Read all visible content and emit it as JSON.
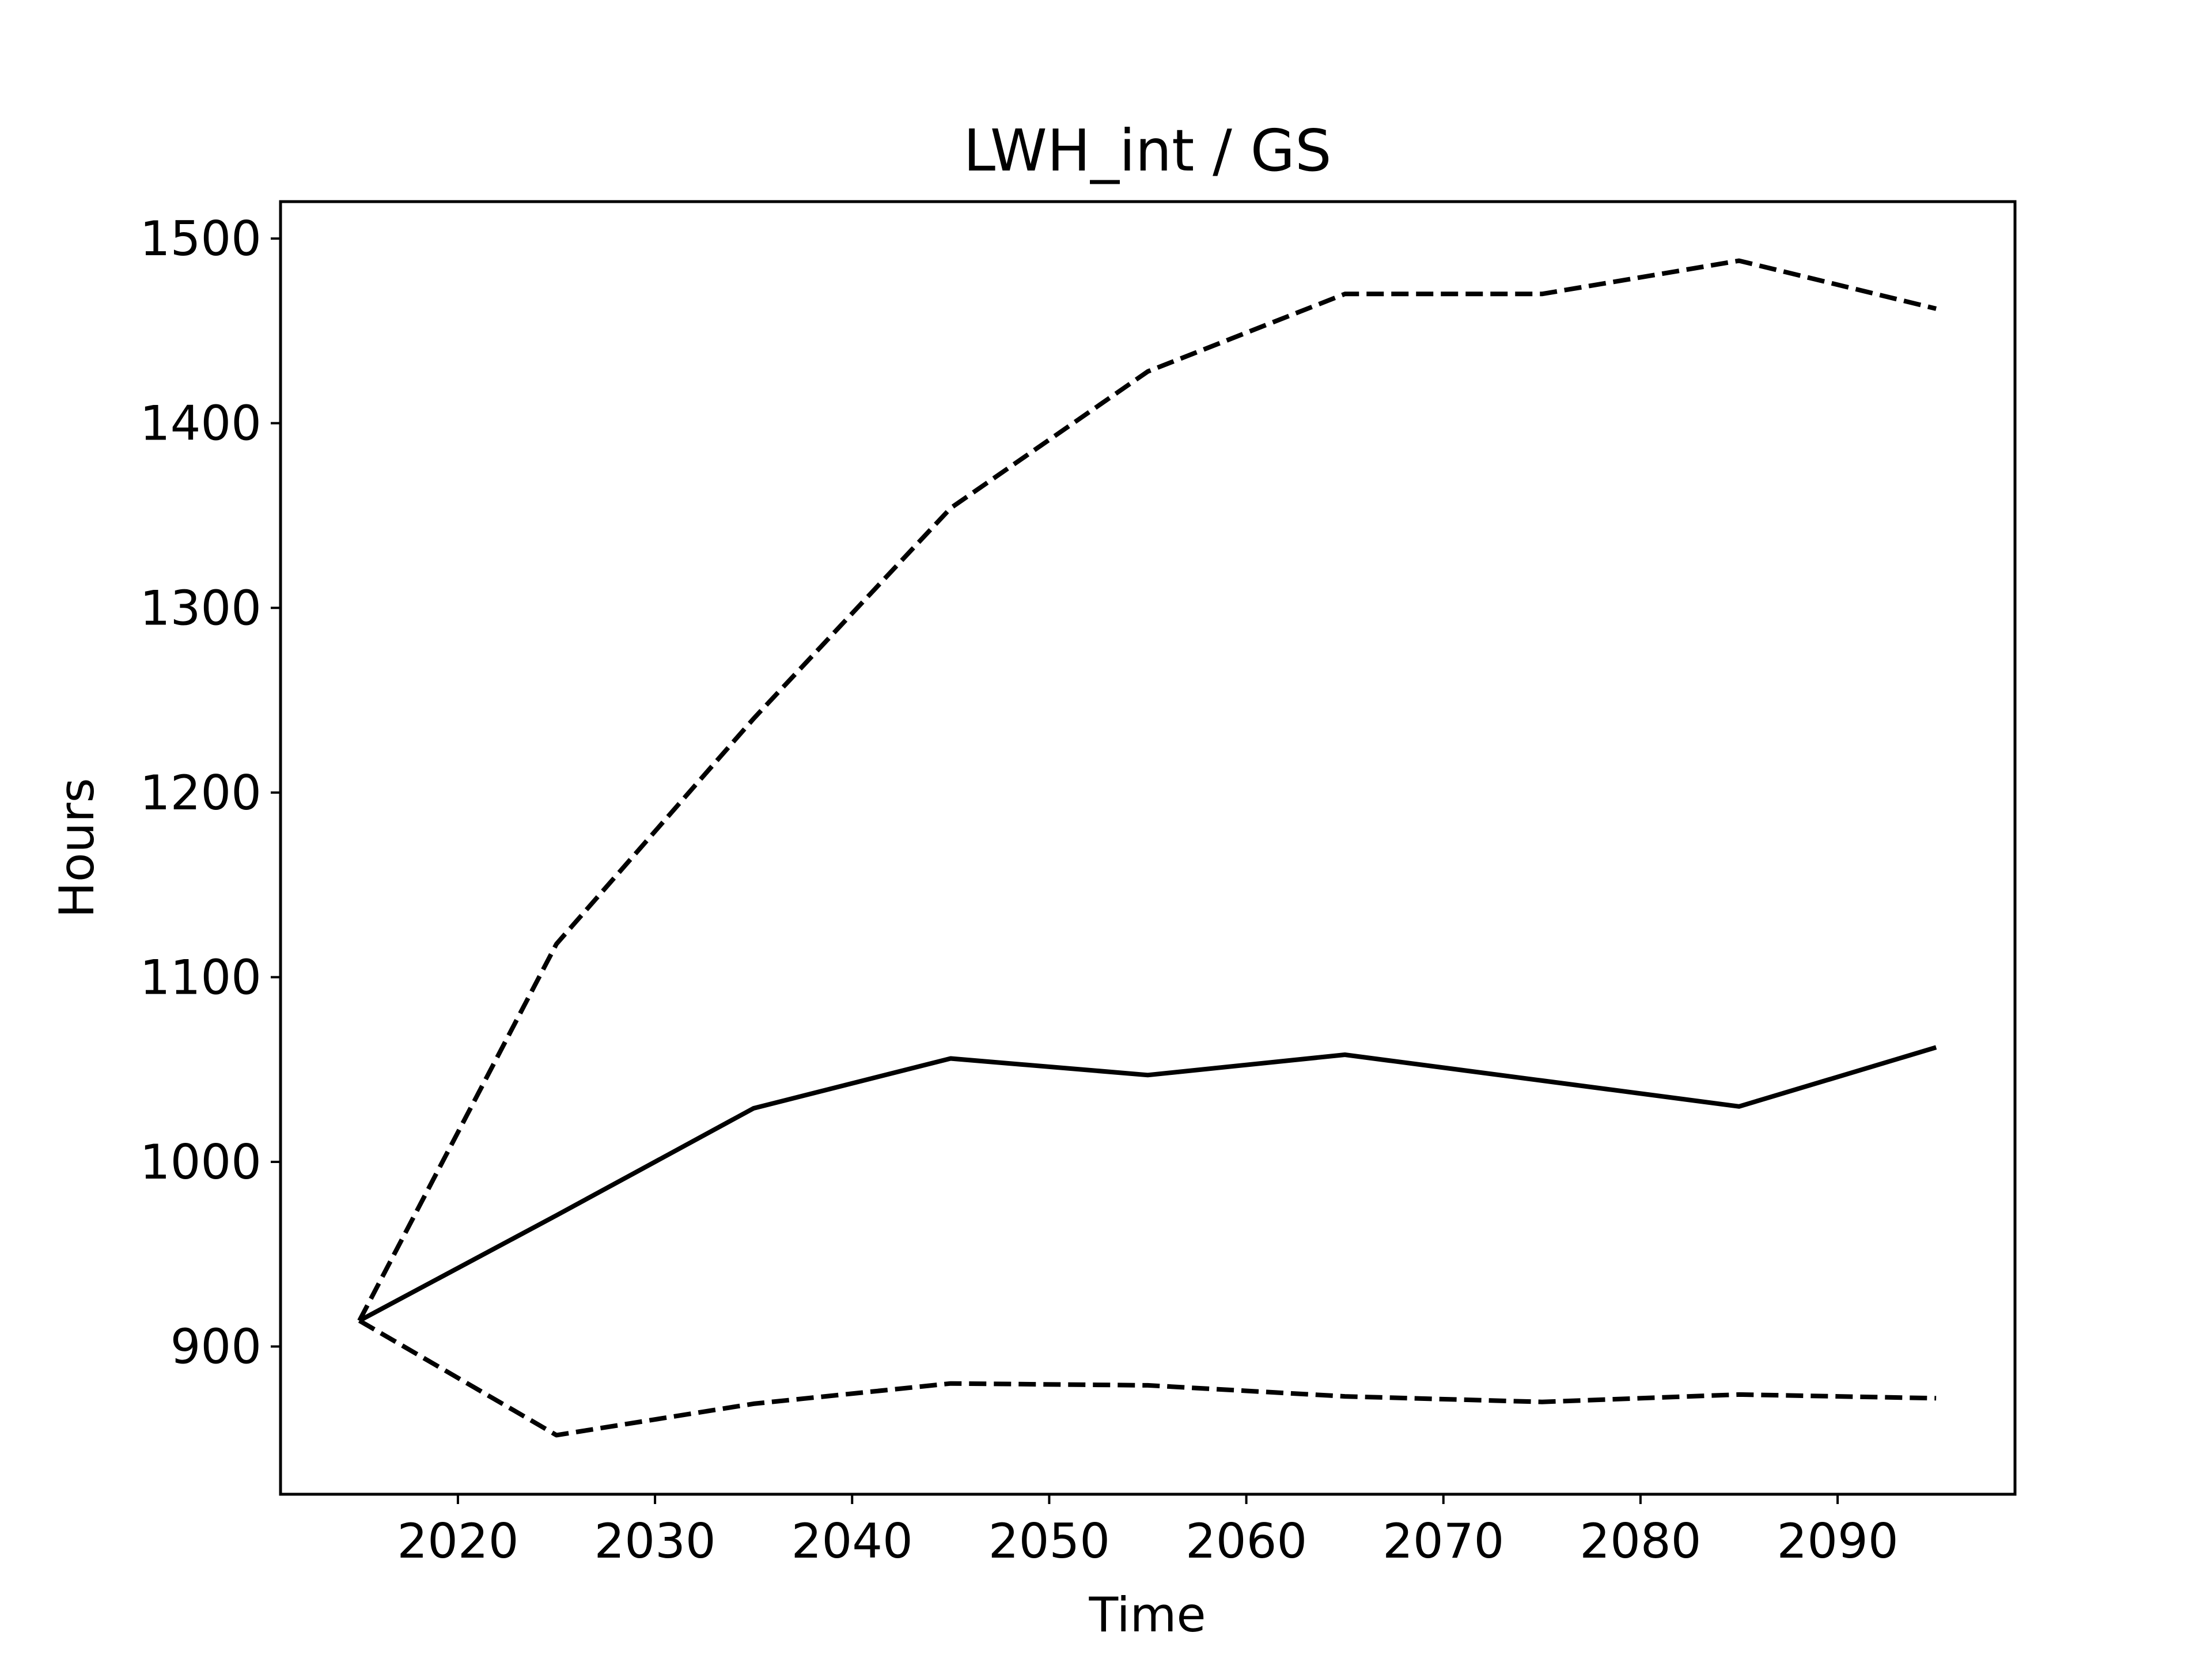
{
  "chart_data": {
    "type": "line",
    "title": "LWH_int / GS",
    "xlabel": "Time",
    "ylabel": "Hours",
    "x": [
      2015,
      2025,
      2035,
      2045,
      2055,
      2065,
      2075,
      2085,
      2095
    ],
    "xlim": [
      2011,
      2099
    ],
    "ylim": [
      820,
      1520
    ],
    "xticks": [
      "2020",
      "2030",
      "2040",
      "2050",
      "2060",
      "2070",
      "2080",
      "2090"
    ],
    "yticks": [
      "900",
      "1000",
      "1100",
      "1200",
      "1300",
      "1400",
      "1500"
    ],
    "grid": false,
    "series": [
      {
        "style": "solid",
        "color": "#000000",
        "values": [
          914,
          971,
          1029,
          1056,
          1047,
          1058,
          1044,
          1030,
          1062
        ]
      },
      {
        "style": "dashed",
        "color": "#000000",
        "values": [
          914,
          1118,
          1240,
          1354,
          1428,
          1470,
          1470,
          1488,
          1462
        ]
      },
      {
        "style": "dashed",
        "color": "#000000",
        "values": [
          914,
          852,
          869,
          880,
          879,
          873,
          870,
          874,
          872
        ]
      }
    ]
  }
}
